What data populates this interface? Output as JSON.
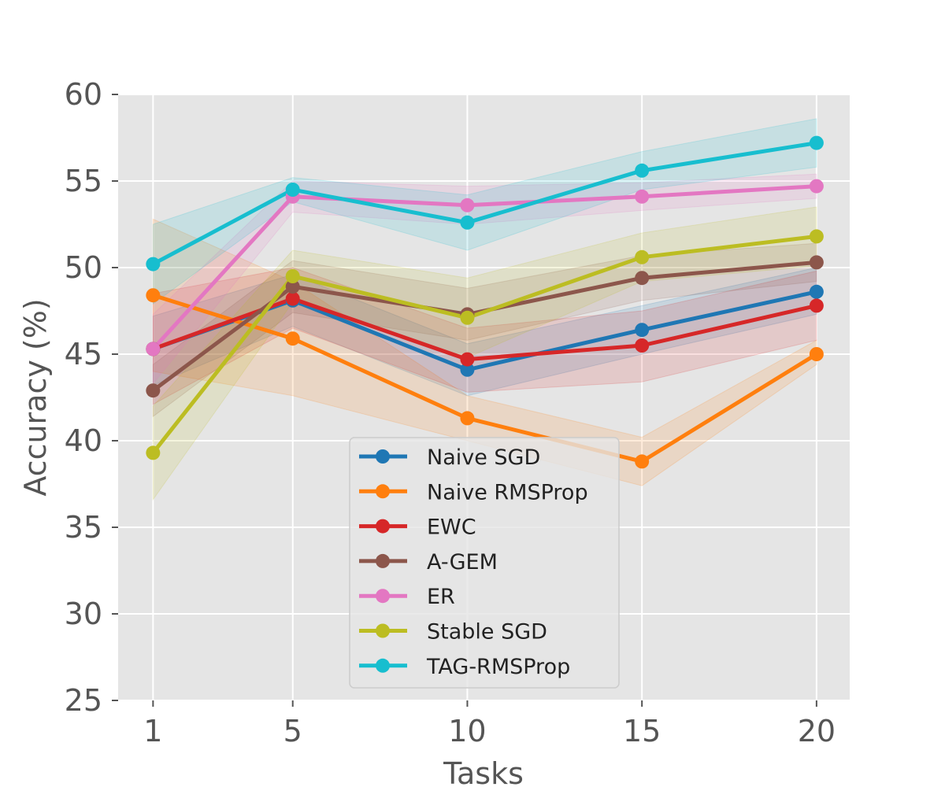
{
  "chart_data": {
    "type": "line",
    "title": "",
    "xlabel": "Tasks",
    "ylabel": "Accuracy (%)",
    "x": [
      1,
      5,
      10,
      15,
      20
    ],
    "xtick_labels": [
      "1",
      "5",
      "10",
      "15",
      "20"
    ],
    "xlim": [
      0.0,
      20.95
    ],
    "ylim": [
      25,
      60
    ],
    "yticks": [
      25,
      30,
      35,
      40,
      45,
      50,
      55,
      60
    ],
    "ytick_labels": [
      "25",
      "30",
      "35",
      "40",
      "45",
      "50",
      "55",
      "60"
    ],
    "grid": true,
    "legend_location": "lower-center",
    "series": [
      {
        "name": "Naive SGD",
        "color": "#1f77b4",
        "values": [
          45.3,
          48.1,
          44.1,
          46.4,
          48.6
        ],
        "lower": [
          43.2,
          46.6,
          42.6,
          45.0,
          47.3
        ],
        "upper": [
          47.2,
          49.6,
          45.6,
          47.8,
          50.0
        ]
      },
      {
        "name": "Naive RMSProp",
        "color": "#ff7f0e",
        "values": [
          48.4,
          45.9,
          41.3,
          38.8,
          45.0
        ],
        "lower": [
          44.0,
          42.6,
          40.0,
          37.4,
          44.4
        ],
        "upper": [
          52.8,
          49.2,
          42.6,
          40.2,
          45.8
        ]
      },
      {
        "name": "EWC",
        "color": "#d62728",
        "values": [
          45.3,
          48.2,
          44.7,
          45.5,
          47.8
        ],
        "lower": [
          42.1,
          46.5,
          42.8,
          43.4,
          45.8
        ],
        "upper": [
          48.5,
          50.0,
          46.5,
          47.5,
          49.8
        ]
      },
      {
        "name": "A-GEM",
        "color": "#8c564b",
        "values": [
          42.9,
          48.9,
          47.3,
          49.4,
          50.3
        ],
        "lower": [
          41.4,
          47.4,
          45.8,
          48.1,
          49.2
        ],
        "upper": [
          44.4,
          50.4,
          48.8,
          50.7,
          51.4
        ]
      },
      {
        "name": "ER",
        "color": "#e377c2",
        "values": [
          45.3,
          54.1,
          53.6,
          54.1,
          54.7
        ],
        "lower": [
          43.3,
          53.2,
          52.5,
          53.3,
          54.0
        ],
        "upper": [
          47.3,
          55.0,
          54.7,
          54.9,
          55.4
        ]
      },
      {
        "name": "Stable SGD",
        "color": "#bcbd22",
        "values": [
          39.3,
          49.5,
          47.1,
          50.6,
          51.8
        ],
        "lower": [
          36.6,
          48.0,
          44.8,
          49.2,
          50.1
        ],
        "upper": [
          42.0,
          51.0,
          49.4,
          52.0,
          53.5
        ]
      },
      {
        "name": "TAG-RMSProp",
        "color": "#17becf",
        "values": [
          50.2,
          54.5,
          52.6,
          55.6,
          57.2
        ],
        "lower": [
          47.9,
          53.8,
          51.0,
          54.5,
          55.8
        ],
        "upper": [
          52.5,
          55.2,
          54.2,
          56.7,
          58.6
        ]
      }
    ]
  }
}
